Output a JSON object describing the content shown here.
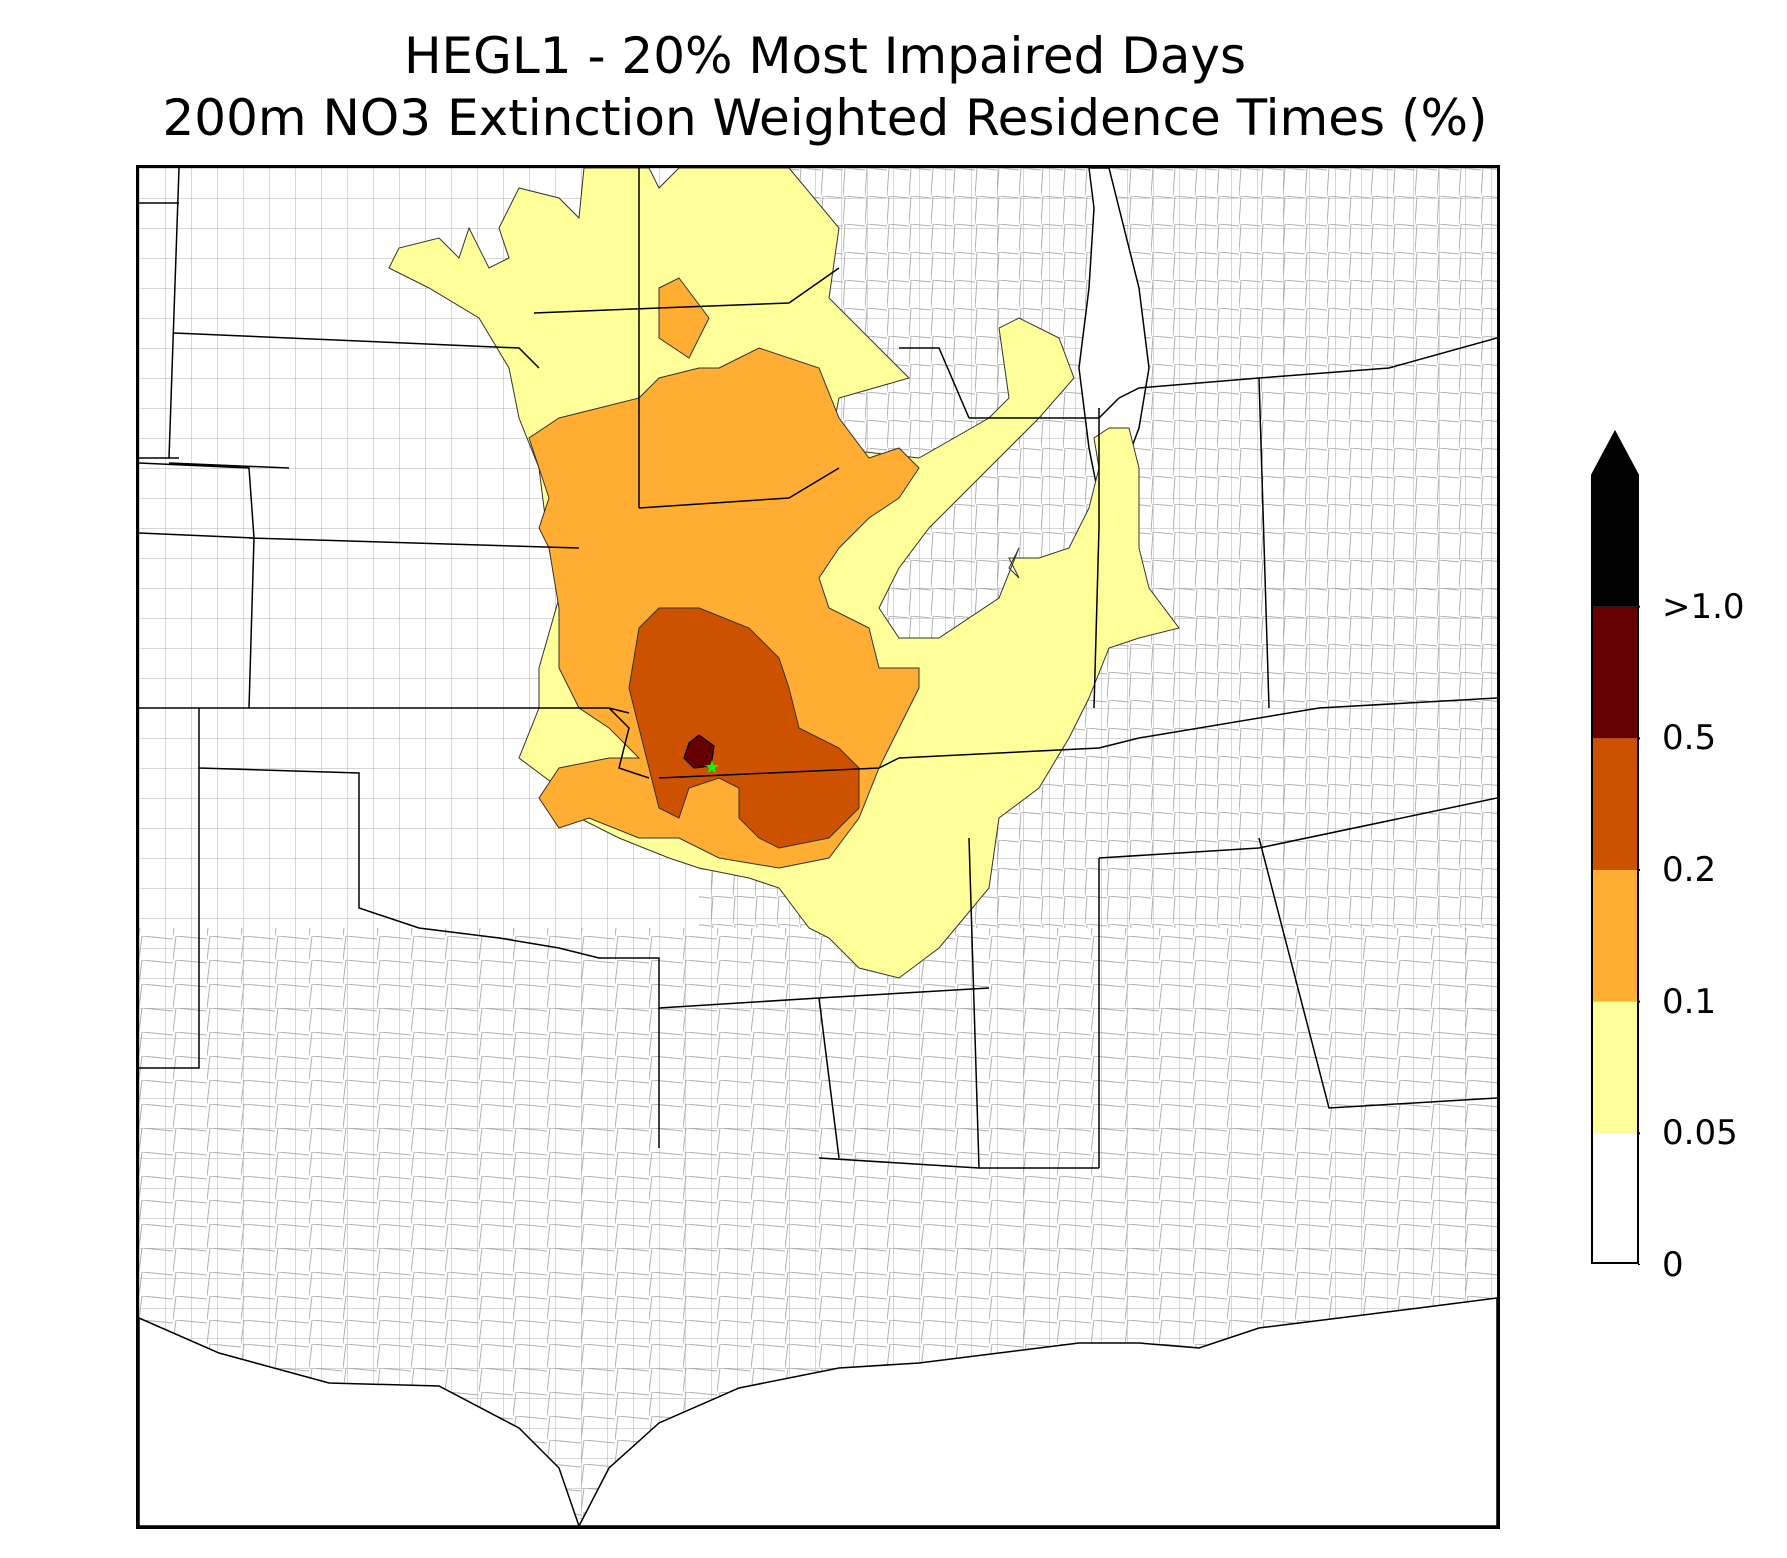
{
  "title": {
    "line1": "HEGL1 - 20% Most Impaired Days",
    "line2": "200m NO3 Extinction Weighted Residence Times (%)"
  },
  "legend": {
    "levels": [
      {
        "label": "0",
        "color": "#ffffff"
      },
      {
        "label": "0.05",
        "color": "#ffff99"
      },
      {
        "label": "0.1",
        "color": "#ffad33"
      },
      {
        "label": "0.2",
        "color": "#cc5200"
      },
      {
        "label": "0.5",
        "color": "#660000"
      },
      {
        "label": ">1.0",
        "color": "#000000"
      }
    ],
    "extend": "max"
  },
  "map": {
    "region": "Central United States",
    "site_marker_color": "#00ff00",
    "site_marker_icon": "star-icon",
    "county_line_color": "#a9a9a9",
    "state_line_color": "#000000"
  }
}
